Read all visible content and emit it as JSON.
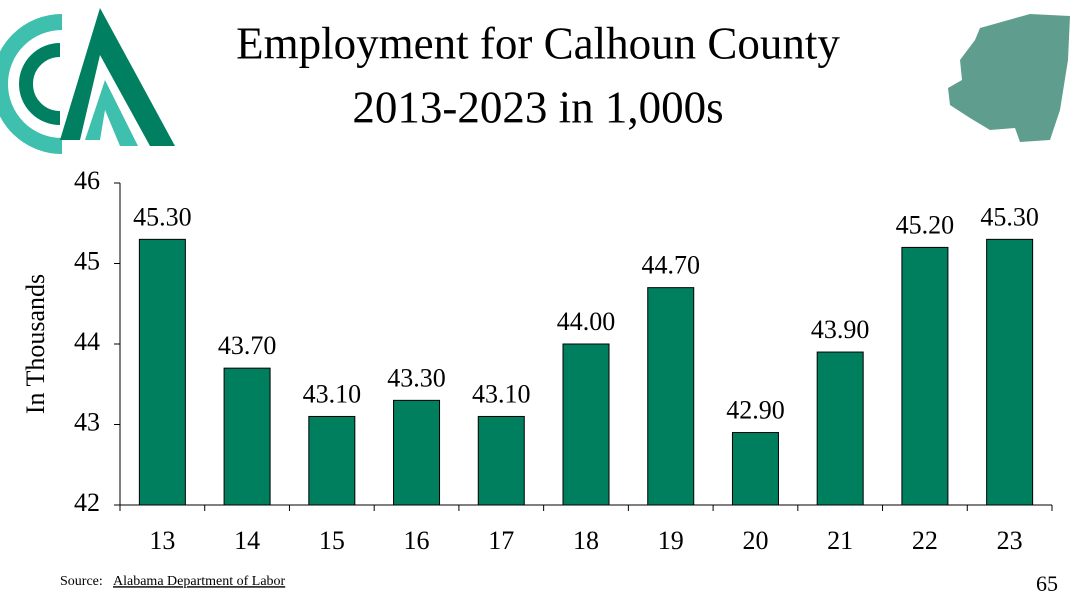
{
  "chart_data": {
    "type": "bar",
    "title": "Employment for Calhoun County",
    "subtitle": "2013-2023 in 1,000s",
    "ylabel": "In Thousands",
    "categories": [
      "13",
      "14",
      "15",
      "16",
      "17",
      "18",
      "19",
      "20",
      "21",
      "22",
      "23"
    ],
    "values": [
      45.3,
      43.7,
      43.1,
      43.3,
      43.1,
      44.0,
      44.7,
      42.9,
      43.9,
      45.2,
      45.3
    ],
    "value_labels": [
      "45.30",
      "43.70",
      "43.10",
      "43.30",
      "43.10",
      "44.00",
      "44.70",
      "42.90",
      "43.90",
      "45.20",
      "45.30"
    ],
    "color": "#007f5f",
    "ylim": [
      42,
      46
    ],
    "yticks": [
      42,
      43,
      44,
      45,
      46
    ],
    "grid": false
  },
  "source": {
    "label": "Source:",
    "link": "Alabama Department of Labor"
  },
  "page_number": "65"
}
